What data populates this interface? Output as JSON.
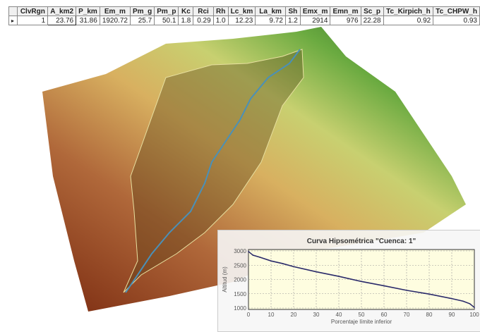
{
  "table": {
    "columns": [
      "",
      "ClvRgn",
      "A_km2",
      "P_km",
      "Em_m",
      "Pm_g",
      "Pm_p",
      "Kc",
      "Rci",
      "Rh",
      "Lc_km",
      "La_km",
      "Sh",
      "Emx_m",
      "Emn_m",
      "Sc_p",
      "Tc_Kirpich_h",
      "Tc_CHPW_h"
    ],
    "rows": [
      [
        "▸",
        "1",
        "23.76",
        "31.86",
        "1920.72",
        "25.7",
        "50.1",
        "1.8",
        "0.29",
        "1.0",
        "12.23",
        "9.72",
        "1.2",
        "2914",
        "976",
        "22.28",
        "0.92",
        "0.93"
      ]
    ]
  },
  "chart_data": {
    "type": "line",
    "title": "Curva Hipsométrica \"Cuenca: 1\"",
    "xlabel": "Porcentaje límite inferior",
    "ylabel": "Altitud (m)",
    "xlim": [
      0,
      100
    ],
    "ylim": [
      1000,
      3000
    ],
    "xticks": [
      "0",
      "10",
      "20",
      "30",
      "40",
      "50",
      "60",
      "70",
      "80",
      "90",
      "100"
    ],
    "yticks": [
      "1000",
      "1500",
      "2000",
      "2500",
      "3000"
    ],
    "grid": true,
    "x": [
      0,
      2,
      5,
      10,
      15,
      20,
      30,
      40,
      50,
      60,
      70,
      80,
      90,
      95,
      98,
      100
    ],
    "y": [
      2980,
      2850,
      2780,
      2650,
      2560,
      2450,
      2270,
      2110,
      1930,
      1780,
      1620,
      1490,
      1330,
      1240,
      1150,
      1020
    ],
    "colors": {
      "line": "#2a2a6a",
      "plot_bg": "#fefde0",
      "grid": "#999999"
    }
  }
}
